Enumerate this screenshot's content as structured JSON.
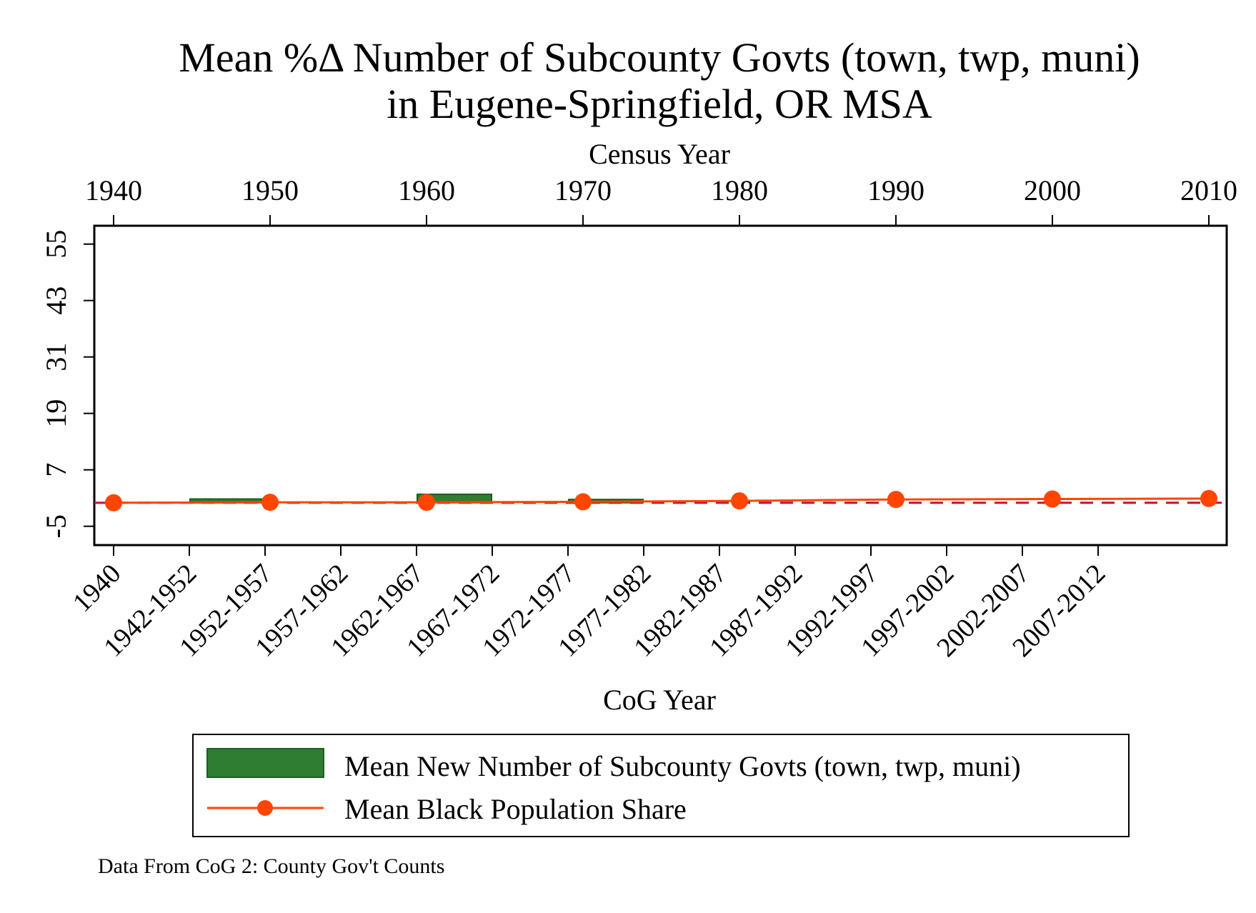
{
  "chart_data": {
    "type": "bar",
    "title_lines": [
      "Mean %Δ Number of Subcounty Govts (town, twp, muni)",
      "in Eugene-Springfield, OR MSA"
    ],
    "top_axis": {
      "label": "Census Year",
      "ticks": [
        "1940",
        "1950",
        "1960",
        "1970",
        "1980",
        "1990",
        "2000",
        "2010"
      ],
      "range": [
        1940,
        2010
      ]
    },
    "y_axis": {
      "ticks": [
        "-5",
        "7",
        "19",
        "31",
        "43",
        "55"
      ],
      "tick_values": [
        -5,
        7,
        19,
        31,
        43,
        55
      ],
      "range": [
        -9,
        58.9
      ]
    },
    "x_axis": {
      "label": "CoG Year",
      "categories": [
        "1940",
        "1942-1952",
        "1952-1957",
        "1957-1962",
        "1962-1967",
        "1967-1972",
        "1972-1977",
        "1977-1982",
        "1982-1987",
        "1987-1992",
        "1992-1997",
        "1997-2002",
        "2002-2007",
        "2007-2012"
      ]
    },
    "series": [
      {
        "name": "Mean New Number of Subcounty Govts (town, twp, muni)",
        "kind": "bar",
        "color": "#2e7d32",
        "values": [
          0,
          0,
          0.8,
          0,
          0,
          1.8,
          0,
          0.7,
          0,
          0,
          0,
          0,
          0,
          0
        ]
      },
      {
        "name": "Mean Black Population Share",
        "kind": "line-markers",
        "color": "#ff4500",
        "x": [
          1940,
          1950,
          1960,
          1970,
          1980,
          1990,
          2000,
          2010
        ],
        "values": [
          0.0,
          0.1,
          0.1,
          0.2,
          0.4,
          0.7,
          0.8,
          0.9
        ]
      }
    ],
    "reference_line": {
      "y": 0,
      "style": "dashed",
      "color": "#c8102e"
    },
    "legend": {
      "position": "bottom",
      "items": [
        "Mean New Number of Subcounty Govts (town, twp, muni)",
        "Mean Black Population Share"
      ]
    },
    "note": "Data From CoG 2: County Gov't Counts",
    "grid": false
  }
}
